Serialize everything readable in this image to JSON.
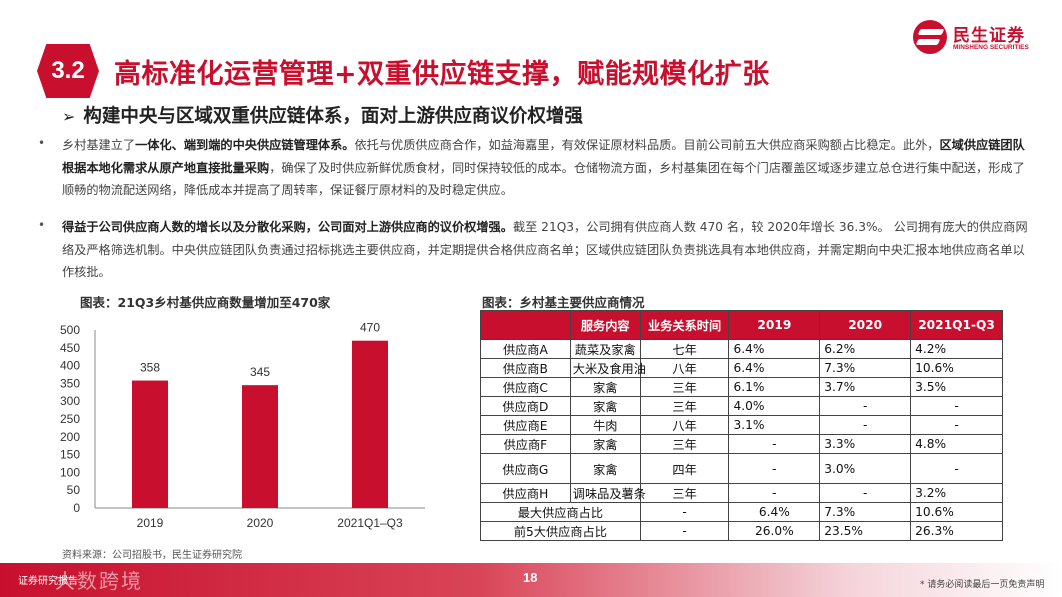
{
  "header": {
    "section_number": "3.2",
    "title": "高标准化运营管理+双重供应链支撑，赋能规模化扩张",
    "logo_cn": "民生证券",
    "logo_en": "MINSHENG SECURITIES",
    "brand_color": "#c8102e"
  },
  "subtitle": {
    "arrow": "➢",
    "text": "构建中央与区域双重供应链体系，面对上游供应商议价权增强"
  },
  "bullets": [
    {
      "marker": "•",
      "p1": "乡村基建立了",
      "b1": "一体化、端到端的中央供应链管理体系。",
      "p2": "依托与优质供应商合作，如益海嘉里，有效保证原材料品质。目前公司前五大供应商采购额占比稳定。此外，",
      "b2": "区域供应链团队根据本地化需求从原产地直接批量采购",
      "p3": "，确保了及时供应新鲜优质食材，同时保持较低的成本。仓储物流方面，乡村基集团在每个门店覆盖区域逐步建立总仓进行集中配送，形成了顺畅的物流配送网络，降低成本并提高了周转率，保证餐厅原材料的及时稳定供应。"
    },
    {
      "marker": "•",
      "b1": "得益于公司供应商人数的增长以及分散化采购，公司面对上游供应商的议价权增强。",
      "p1": "截至 21Q3，公司拥有供应商人数 470 名，较 2020年增长 36.3%。 公司拥有庞大的供应商网络及严格筛选机制。中央供应链团队负责通过招标挑选主要供应商，并定期提供合格供应商名单；区域供应链团队负责挑选具有本地供应商，并需定期向中央汇报本地供应商名单以作核批。"
    }
  ],
  "chart_caption": "图表：21Q3乡村基供应商数量增加至470家",
  "chart_data": {
    "type": "bar",
    "title": "图表：21Q3乡村基供应商数量增加至470家",
    "categories": [
      "2019",
      "2020",
      "2021Q1–Q3"
    ],
    "values": [
      358,
      345,
      470
    ],
    "ylim": [
      0,
      500
    ],
    "yticks": [
      "0",
      "50",
      "100",
      "150",
      "200",
      "250",
      "300",
      "350",
      "400",
      "450",
      "500"
    ],
    "bar_color": "#c8102e",
    "data_labels": true,
    "grid": false
  },
  "table": {
    "caption": "图表：乡村基主要供应商情况",
    "headers": [
      "",
      "服务内容",
      "业务关系时间",
      "2019",
      "2020",
      "2021Q1-Q3"
    ],
    "rows": [
      [
        "供应商A",
        "蔬菜及家禽",
        "七年",
        "6.4%",
        "6.2%",
        "4.2%"
      ],
      [
        "供应商B",
        "大米及食用油",
        "八年",
        "6.4%",
        "7.3%",
        "10.6%"
      ],
      [
        "供应商C",
        "家禽",
        "三年",
        "6.1%",
        "3.7%",
        "3.5%"
      ],
      [
        "供应商D",
        "家禽",
        "三年",
        "4.0%",
        "-",
        "-"
      ],
      [
        "供应商E",
        "牛肉",
        "八年",
        "3.1%",
        "-",
        "-"
      ],
      [
        "供应商F",
        "家禽",
        "三年",
        "-",
        "3.3%",
        "4.8%"
      ],
      [
        "供应商G",
        "家禽",
        "四年",
        "-",
        "3.0%",
        "-"
      ],
      [
        "供应商H",
        "调味品及薯条",
        "三年",
        "-",
        "-",
        "3.2%"
      ]
    ],
    "summary_rows": [
      [
        "最大供应商占比",
        "-",
        "6.4%",
        "7.3%",
        "10.6%"
      ],
      [
        "前5大供应商占比",
        "-",
        "26.0%",
        "23.5%",
        "26.3%"
      ]
    ]
  },
  "source_note": "资料来源：公司招股书，民生证券研究院",
  "footer": {
    "logo_text": "证券研究报告",
    "watermark": "大数跨境",
    "page_number": "18",
    "disclaimer": "* 请务必阅读最后一页免责声明"
  }
}
